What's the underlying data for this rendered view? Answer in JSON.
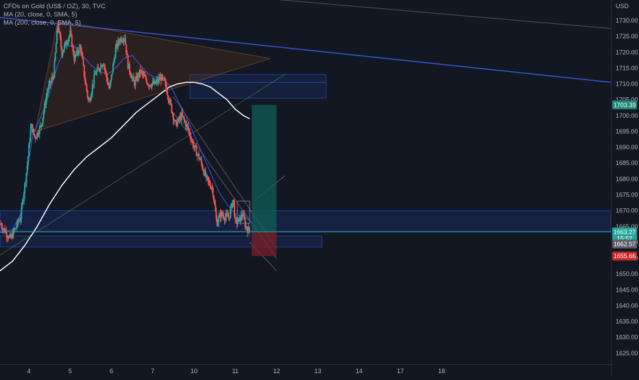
{
  "legend": {
    "title": "CFDs on Gold (US$ / OZ), 30, TVC",
    "ma20": "MA (20, close, 0, SMA, 5)",
    "ma200": "MA (200, close, 0, SMA, 5)"
  },
  "colors": {
    "background": "#131722",
    "up": "#26a69a",
    "down": "#ef5350",
    "ma20": "#2962ff",
    "ma200": "#ffffff",
    "trendline": "#3a57d1",
    "zone": "#2962ff",
    "target": "#0f5e55",
    "stop": "#7a1f26"
  },
  "chart_data": {
    "type": "candlestick",
    "title": "CFDs on Gold (US$ / OZ), 30, TVC",
    "xlabel": "",
    "ylabel": "USD",
    "ylim": [
      1621.5,
      1736.5
    ],
    "xlim": [
      3.3,
      18.1
    ],
    "y_ticks": [
      1625,
      1630,
      1635,
      1640,
      1645,
      1650,
      1655,
      1660,
      1665,
      1670,
      1675,
      1680,
      1685,
      1690,
      1695,
      1700,
      1705,
      1710,
      1715,
      1720,
      1725,
      1730
    ],
    "x_ticks": [
      "4",
      "5",
      "6",
      "7",
      "10",
      "11",
      "12",
      "13",
      "14",
      "17",
      "18"
    ],
    "x_tick_positions": [
      4,
      5,
      6,
      7,
      8,
      9,
      10,
      11,
      12,
      13,
      14
    ],
    "grid": false,
    "legend_position": "top-left",
    "price_path": [
      [
        3.3,
        1666
      ],
      [
        3.55,
        1661
      ],
      [
        3.8,
        1668
      ],
      [
        3.95,
        1683
      ],
      [
        4.05,
        1697
      ],
      [
        4.15,
        1693
      ],
      [
        4.3,
        1697
      ],
      [
        4.45,
        1708
      ],
      [
        4.6,
        1713
      ],
      [
        4.7,
        1729
      ],
      [
        4.8,
        1720
      ],
      [
        4.9,
        1723
      ],
      [
        5.0,
        1726
      ],
      [
        5.1,
        1718
      ],
      [
        5.25,
        1722
      ],
      [
        5.35,
        1712
      ],
      [
        5.45,
        1704
      ],
      [
        5.6,
        1713
      ],
      [
        5.8,
        1717
      ],
      [
        5.95,
        1708
      ],
      [
        6.1,
        1721
      ],
      [
        6.2,
        1724
      ],
      [
        6.32,
        1725
      ],
      [
        6.4,
        1716
      ],
      [
        6.55,
        1710
      ],
      [
        6.7,
        1714
      ],
      [
        6.9,
        1710
      ],
      [
        7.05,
        1710
      ],
      [
        7.2,
        1712
      ],
      [
        7.3,
        1710
      ],
      [
        7.42,
        1704
      ],
      [
        7.55,
        1697
      ],
      [
        7.7,
        1700
      ],
      [
        7.85,
        1696
      ],
      [
        8.0,
        1690
      ],
      [
        8.15,
        1686
      ],
      [
        8.3,
        1680
      ],
      [
        8.45,
        1677
      ],
      [
        8.55,
        1666
      ],
      [
        8.65,
        1669
      ],
      [
        8.75,
        1668
      ],
      [
        8.85,
        1668
      ],
      [
        8.95,
        1674
      ],
      [
        9.0,
        1666
      ],
      [
        9.1,
        1667
      ],
      [
        9.18,
        1669
      ],
      [
        9.25,
        1665
      ],
      [
        9.35,
        1663.3
      ]
    ],
    "series": [
      {
        "name": "MA (20, close, 0, SMA, 5)",
        "type": "line",
        "color": "#2962ff",
        "x": [
          3.3,
          3.6,
          3.8,
          3.95,
          4.1,
          4.3,
          4.5,
          4.7,
          4.9,
          5.1,
          5.3,
          5.5,
          5.7,
          5.9,
          6.1,
          6.3,
          6.5,
          6.7,
          6.9,
          7.1,
          7.3,
          7.45,
          7.6,
          7.8,
          8.0,
          8.2,
          8.4,
          8.6,
          8.8,
          9.0,
          9.2,
          9.35
        ],
        "values": [
          1663,
          1664,
          1669,
          1682,
          1694,
          1700,
          1707,
          1716,
          1722,
          1722,
          1719,
          1716,
          1714,
          1713,
          1715,
          1718,
          1719,
          1716,
          1713,
          1712,
          1711,
          1709,
          1705,
          1700,
          1694,
          1688,
          1682,
          1676,
          1672,
          1669,
          1668,
          1667
        ]
      },
      {
        "name": "MA (200, close, 0, SMA, 5)",
        "type": "line",
        "color": "#ffffff",
        "x": [
          3.3,
          3.6,
          3.9,
          4.2,
          4.5,
          4.8,
          5.1,
          5.4,
          5.7,
          6.0,
          6.3,
          6.6,
          6.9,
          7.2,
          7.4,
          7.6,
          7.8,
          8.0,
          8.2,
          8.4,
          8.6,
          8.8,
          9.0,
          9.2,
          9.35
        ],
        "values": [
          1651,
          1654,
          1659,
          1665,
          1672,
          1678,
          1683,
          1687,
          1690,
          1693,
          1697,
          1701,
          1704,
          1707,
          1709,
          1710,
          1710.5,
          1710.5,
          1710,
          1709,
          1707,
          1705,
          1702,
          1700,
          1699
        ]
      }
    ],
    "drawings": {
      "resistance_trendline": [
        [
          3.3,
          1731
        ],
        [
          18.1,
          1710.5
        ]
      ],
      "upper_grey_line": [
        [
          8.8,
          1738
        ],
        [
          18.1,
          1727.5
        ]
      ],
      "rising_support_line": [
        [
          3.3,
          1656
        ],
        [
          10.2,
          1713
        ]
      ],
      "triangle": [
        [
          4.15,
          1695
        ],
        [
          4.7,
          1730
        ],
        [
          9.85,
          1718
        ]
      ],
      "falling_channel_upper": [
        [
          7.5,
          1706
        ],
        [
          10.0,
          1658
        ]
      ],
      "falling_channel_lower": [
        [
          7.5,
          1701
        ],
        [
          10.0,
          1655
        ]
      ],
      "projection_line_upper": [
        [
          9.45,
          1673
        ],
        [
          10.2,
          1681
        ]
      ],
      "projection_line_lower": [
        [
          9.35,
          1660
        ],
        [
          10.0,
          1651
        ]
      ],
      "small_rectangle": [
        [
          9.05,
          1673
        ],
        [
          9.35,
          1666
        ]
      ],
      "zone_upper": {
        "x": [
          7.9,
          11.2
        ],
        "y": [
          1705.5,
          1713
        ]
      },
      "zone_upper_midline": 1710.5,
      "zone_middle": {
        "x": [
          3.3,
          18.1
        ],
        "y": [
          1663.5,
          1670
        ]
      },
      "zone_lower": {
        "x": [
          3.3,
          11.1
        ],
        "y": [
          1658.5,
          1662
        ]
      },
      "position_entry": 1663.27,
      "position_target": 1703.39,
      "position_stop": 1655.66,
      "position_x": [
        9.4,
        10.0
      ]
    },
    "price_labels": [
      {
        "label": "1703.39",
        "value": 1703.39,
        "color": "#1f8a78"
      },
      {
        "label": "1663.27",
        "value": 1663.27,
        "color": "#26a69a"
      },
      {
        "label": "15:52",
        "value": 1661.2,
        "color": "#26a69a"
      },
      {
        "label": "1662.57",
        "value": 1659.5,
        "color": "#5d606b"
      },
      {
        "label": "1655.66",
        "value": 1655.66,
        "color": "#c62828"
      }
    ],
    "axis_unit_label": "USD"
  }
}
